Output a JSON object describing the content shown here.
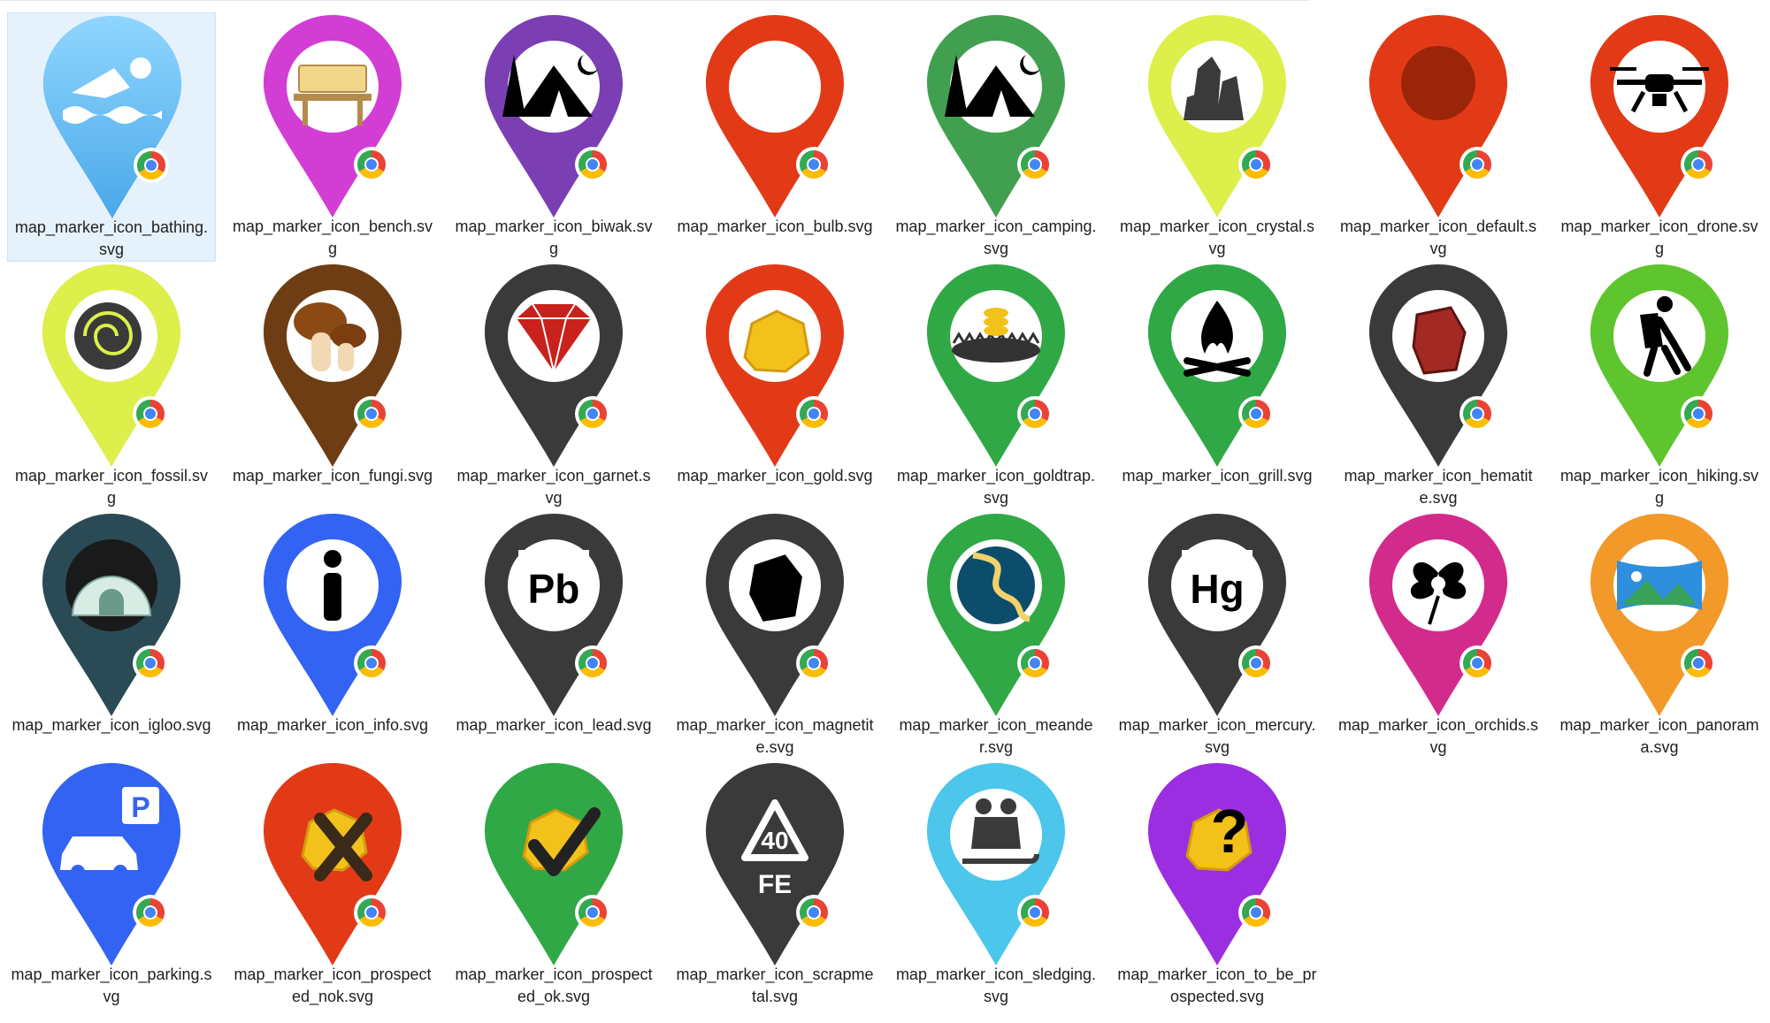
{
  "window": {
    "view": "Large icons"
  },
  "badge_icon": "chrome-icon",
  "files": [
    {
      "name": "map_marker_icon_bathing.svg",
      "icon": "swimmer-icon",
      "color": "#6cc1f2",
      "selected": true
    },
    {
      "name": "map_marker_icon_bench.svg",
      "icon": "bench-icon",
      "color": "#d23ed4"
    },
    {
      "name": "map_marker_icon_biwak.svg",
      "icon": "tent-moon-icon",
      "color": "#7b3eb3"
    },
    {
      "name": "map_marker_icon_bulb.svg",
      "icon": "empty-circle-icon",
      "color": "#e23a17"
    },
    {
      "name": "map_marker_icon_camping.svg",
      "icon": "tent-moon-icon",
      "color": "#41a050"
    },
    {
      "name": "map_marker_icon_crystal.svg",
      "icon": "crystal-icon",
      "color": "#dcef4a"
    },
    {
      "name": "map_marker_icon_default.svg",
      "icon": "dot-icon",
      "color": "#e23a17"
    },
    {
      "name": "map_marker_icon_drone.svg",
      "icon": "drone-icon",
      "color": "#e23a17"
    },
    {
      "name": "map_marker_icon_fossil.svg",
      "icon": "fossil-icon",
      "color": "#dcef4a"
    },
    {
      "name": "map_marker_icon_fungi.svg",
      "icon": "mushroom-icon",
      "color": "#6e3d14"
    },
    {
      "name": "map_marker_icon_garnet.svg",
      "icon": "gem-icon",
      "color": "#3a3a3a"
    },
    {
      "name": "map_marker_icon_gold.svg",
      "icon": "gold-nugget-icon",
      "color": "#e23a17"
    },
    {
      "name": "map_marker_icon_goldtrap.svg",
      "icon": "gold-trap-icon",
      "color": "#2fa845"
    },
    {
      "name": "map_marker_icon_grill.svg",
      "icon": "campfire-icon",
      "color": "#2fa845"
    },
    {
      "name": "map_marker_icon_hematite.svg",
      "icon": "hematite-stone-icon",
      "color": "#3a3a3a"
    },
    {
      "name": "map_marker_icon_hiking.svg",
      "icon": "hiker-icon",
      "color": "#5ec52e"
    },
    {
      "name": "map_marker_icon_igloo.svg",
      "icon": "igloo-icon",
      "color": "#2a4b55"
    },
    {
      "name": "map_marker_icon_info.svg",
      "icon": "info-icon",
      "color": "#3363f2"
    },
    {
      "name": "map_marker_icon_lead.svg",
      "icon": "lead-pb-icon",
      "color": "#3a3a3a",
      "label": "Pb"
    },
    {
      "name": "map_marker_icon_magnetite.svg",
      "icon": "magnetite-stone-icon",
      "color": "#3a3a3a"
    },
    {
      "name": "map_marker_icon_meander.svg",
      "icon": "river-meander-icon",
      "color": "#2fa845"
    },
    {
      "name": "map_marker_icon_mercury.svg",
      "icon": "mercury-hg-icon",
      "color": "#3a3a3a",
      "label": "Hg"
    },
    {
      "name": "map_marker_icon_orchids.svg",
      "icon": "orchid-icon",
      "color": "#d32b8c"
    },
    {
      "name": "map_marker_icon_panorama.svg",
      "icon": "panorama-icon",
      "color": "#f2992a"
    },
    {
      "name": "map_marker_icon_parking.svg",
      "icon": "parking-car-icon",
      "color": "#3363f2",
      "label": "P"
    },
    {
      "name": "map_marker_icon_prospected_nok.svg",
      "icon": "nugget-cross-icon",
      "color": "#e23a17"
    },
    {
      "name": "map_marker_icon_prospected_ok.svg",
      "icon": "nugget-check-icon",
      "color": "#2fa845"
    },
    {
      "name": "map_marker_icon_scrapmetal.svg",
      "icon": "recycle-fe-icon",
      "color": "#3a3a3a",
      "label": "40",
      "label2": "FE"
    },
    {
      "name": "map_marker_icon_sledging.svg",
      "icon": "sledge-icon",
      "color": "#4cc6ea"
    },
    {
      "name": "map_marker_icon_to_be_prospected.svg",
      "icon": "nugget-question-icon",
      "color": "#9b2ee0",
      "label": "?"
    }
  ]
}
